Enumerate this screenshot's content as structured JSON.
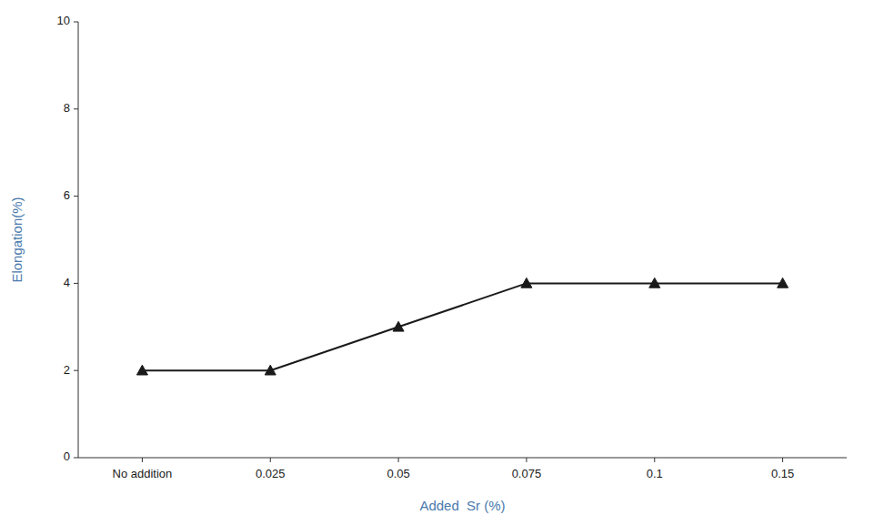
{
  "chart_data": {
    "type": "line",
    "categories": [
      "No addition",
      "0.025",
      "0.05",
      "0.075",
      "0.1",
      "0.15"
    ],
    "values": [
      2,
      2,
      3,
      4,
      4,
      4
    ],
    "xlabel": "Added  Sr (%)",
    "ylabel": "Elongation(%)",
    "ylim": [
      0,
      10
    ],
    "yticks": [
      0,
      2,
      4,
      6,
      8,
      10
    ],
    "color": "#1a1a1a",
    "marker": "triangle",
    "grid": false
  }
}
